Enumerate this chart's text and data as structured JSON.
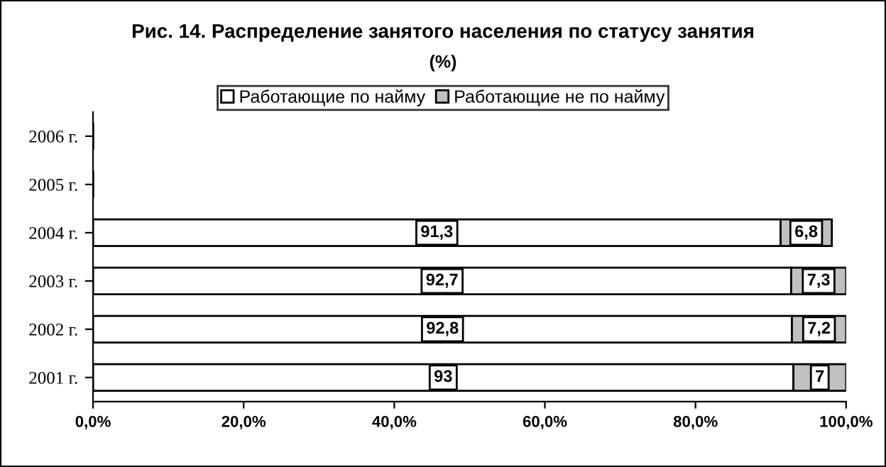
{
  "chart_data": {
    "type": "bar",
    "orientation": "horizontal",
    "stacked": true,
    "title": "Рис. 14. Распределение занятого населения по статусу занятия",
    "subtitle": "(%)",
    "categories": [
      "2006 г.",
      "2005 г.",
      "2004 г.",
      "2003 г.",
      "2002 г.",
      "2001 г."
    ],
    "series": [
      {
        "name": "Работающие по найму",
        "color": "#ffffff",
        "values": [
          null,
          null,
          91.3,
          92.7,
          92.8,
          93
        ],
        "value_labels": [
          null,
          null,
          "91,3",
          "92,7",
          "92,8",
          "93"
        ]
      },
      {
        "name": "Работающие не по найму",
        "color": "#c0c0c0",
        "values": [
          null,
          null,
          6.8,
          7.3,
          7.2,
          7
        ],
        "value_labels": [
          null,
          null,
          "6,8",
          "7,3",
          "7,2",
          "7"
        ]
      }
    ],
    "xlim": [
      0,
      100
    ],
    "xticks": [
      {
        "value": 0,
        "label": "0,0%"
      },
      {
        "value": 20,
        "label": "20,0%"
      },
      {
        "value": 40,
        "label": "40,0%"
      },
      {
        "value": 60,
        "label": "60,0%"
      },
      {
        "value": 80,
        "label": "80,0%"
      },
      {
        "value": 100,
        "label": "100,0%"
      }
    ],
    "legend": "top",
    "grid": false
  }
}
